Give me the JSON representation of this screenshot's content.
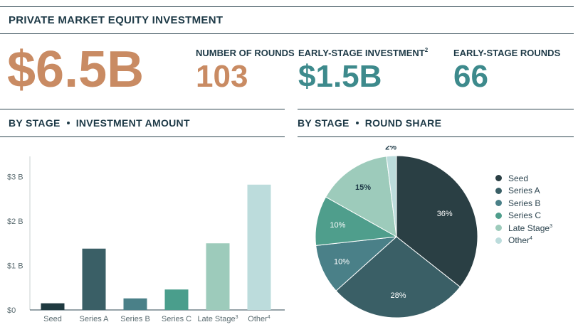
{
  "header": {
    "title": "PRIVATE MARKET EQUITY INVESTMENT"
  },
  "kpis": {
    "total": {
      "value": "$6.5B",
      "color": "#c98b63"
    },
    "rounds": {
      "label": "NUMBER OF ROUNDS",
      "value": "103",
      "color": "#c98b63"
    },
    "early_investment": {
      "label": "EARLY-STAGE INVESTMENT",
      "sup": "2",
      "value": "$1.5B",
      "color": "#3d8a8c"
    },
    "early_rounds": {
      "label": "EARLY-STAGE ROUNDS",
      "value": "66",
      "color": "#3d8a8c"
    }
  },
  "sections": {
    "left": {
      "part1": "BY STAGE",
      "part2": "INVESTMENT AMOUNT"
    },
    "right": {
      "part1": "BY STAGE",
      "part2": "ROUND SHARE"
    }
  },
  "chart_data": [
    {
      "type": "bar",
      "title": "BY STAGE • INVESTMENT AMOUNT",
      "categories": [
        "Seed",
        "Series A",
        "Series B",
        "Series C",
        "Late Stage",
        "Other"
      ],
      "category_sups": [
        "",
        "",
        "",
        "",
        "3",
        "4"
      ],
      "values": [
        0.15,
        1.38,
        0.26,
        0.46,
        1.5,
        2.82
      ],
      "unit": "B",
      "yticks": [
        0,
        1,
        2,
        3
      ],
      "ytick_labels": [
        "$0",
        "$1 B",
        "$2 B",
        "$3 B"
      ],
      "ylim": [
        0,
        3.2
      ],
      "colors": [
        "#1f3a40",
        "#3a5f66",
        "#4a8088",
        "#4a9e8c",
        "#9dcbbb",
        "#bcdcdc"
      ],
      "xlabel": "",
      "ylabel": ""
    },
    {
      "type": "pie",
      "title": "BY STAGE • ROUND SHARE",
      "labels": [
        "Seed",
        "Series A",
        "Series B",
        "Series C",
        "Late Stage",
        "Other"
      ],
      "label_sups": [
        "",
        "",
        "",
        "",
        "3",
        "4"
      ],
      "values": [
        36,
        28,
        10,
        10,
        15,
        2
      ],
      "value_labels": [
        "36%",
        "28%",
        "10%",
        "10%",
        "15%",
        "2%"
      ],
      "colors": [
        "#2a3f44",
        "#3a5f66",
        "#4a8088",
        "#4f9e8c",
        "#9dcbbb",
        "#bcdcdc"
      ],
      "label_colors": [
        "#ffffff",
        "#ffffff",
        "#ffffff",
        "#ffffff",
        "#1e3a47",
        "#1e3a47"
      ],
      "legend_position": "right"
    }
  ]
}
